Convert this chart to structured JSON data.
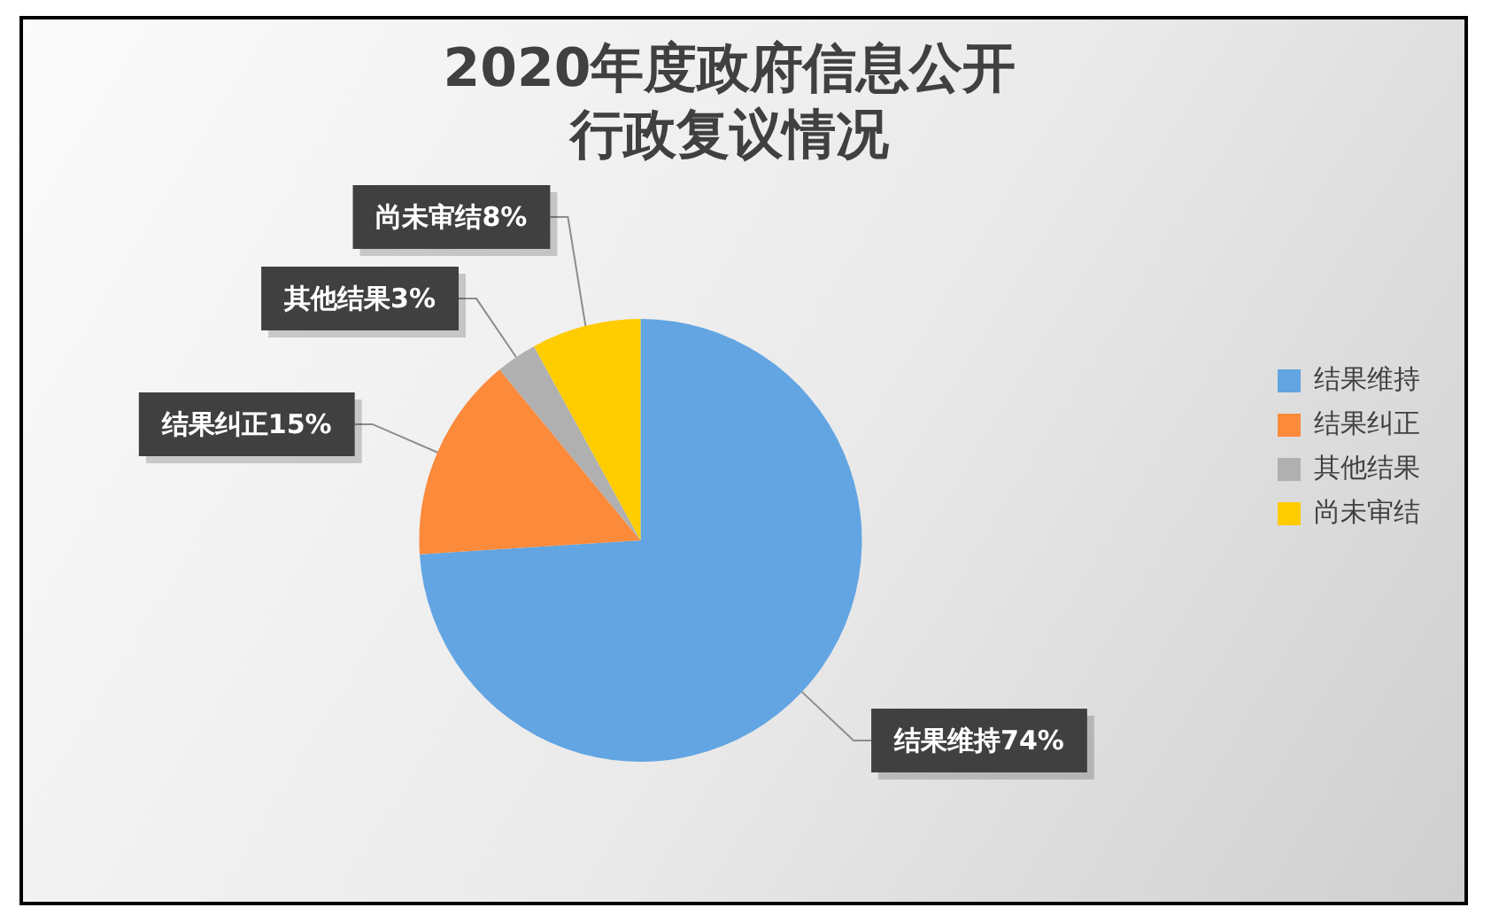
{
  "chart_data": {
    "type": "pie",
    "title": "2020年度政府信息公开行政复议情况",
    "categories": [
      "结果维持",
      "结果纠正",
      "其他结果",
      "尚未审结"
    ],
    "values": [
      74,
      15,
      3,
      8
    ],
    "colors": [
      "#62a5e2",
      "#fb8a3b",
      "#b0b0b0",
      "#ffcc00"
    ],
    "value_labels": [
      "结果维持74%",
      "结果纠正15%",
      "其他结果3%",
      "尚未审结8%"
    ],
    "legend": "right"
  }
}
